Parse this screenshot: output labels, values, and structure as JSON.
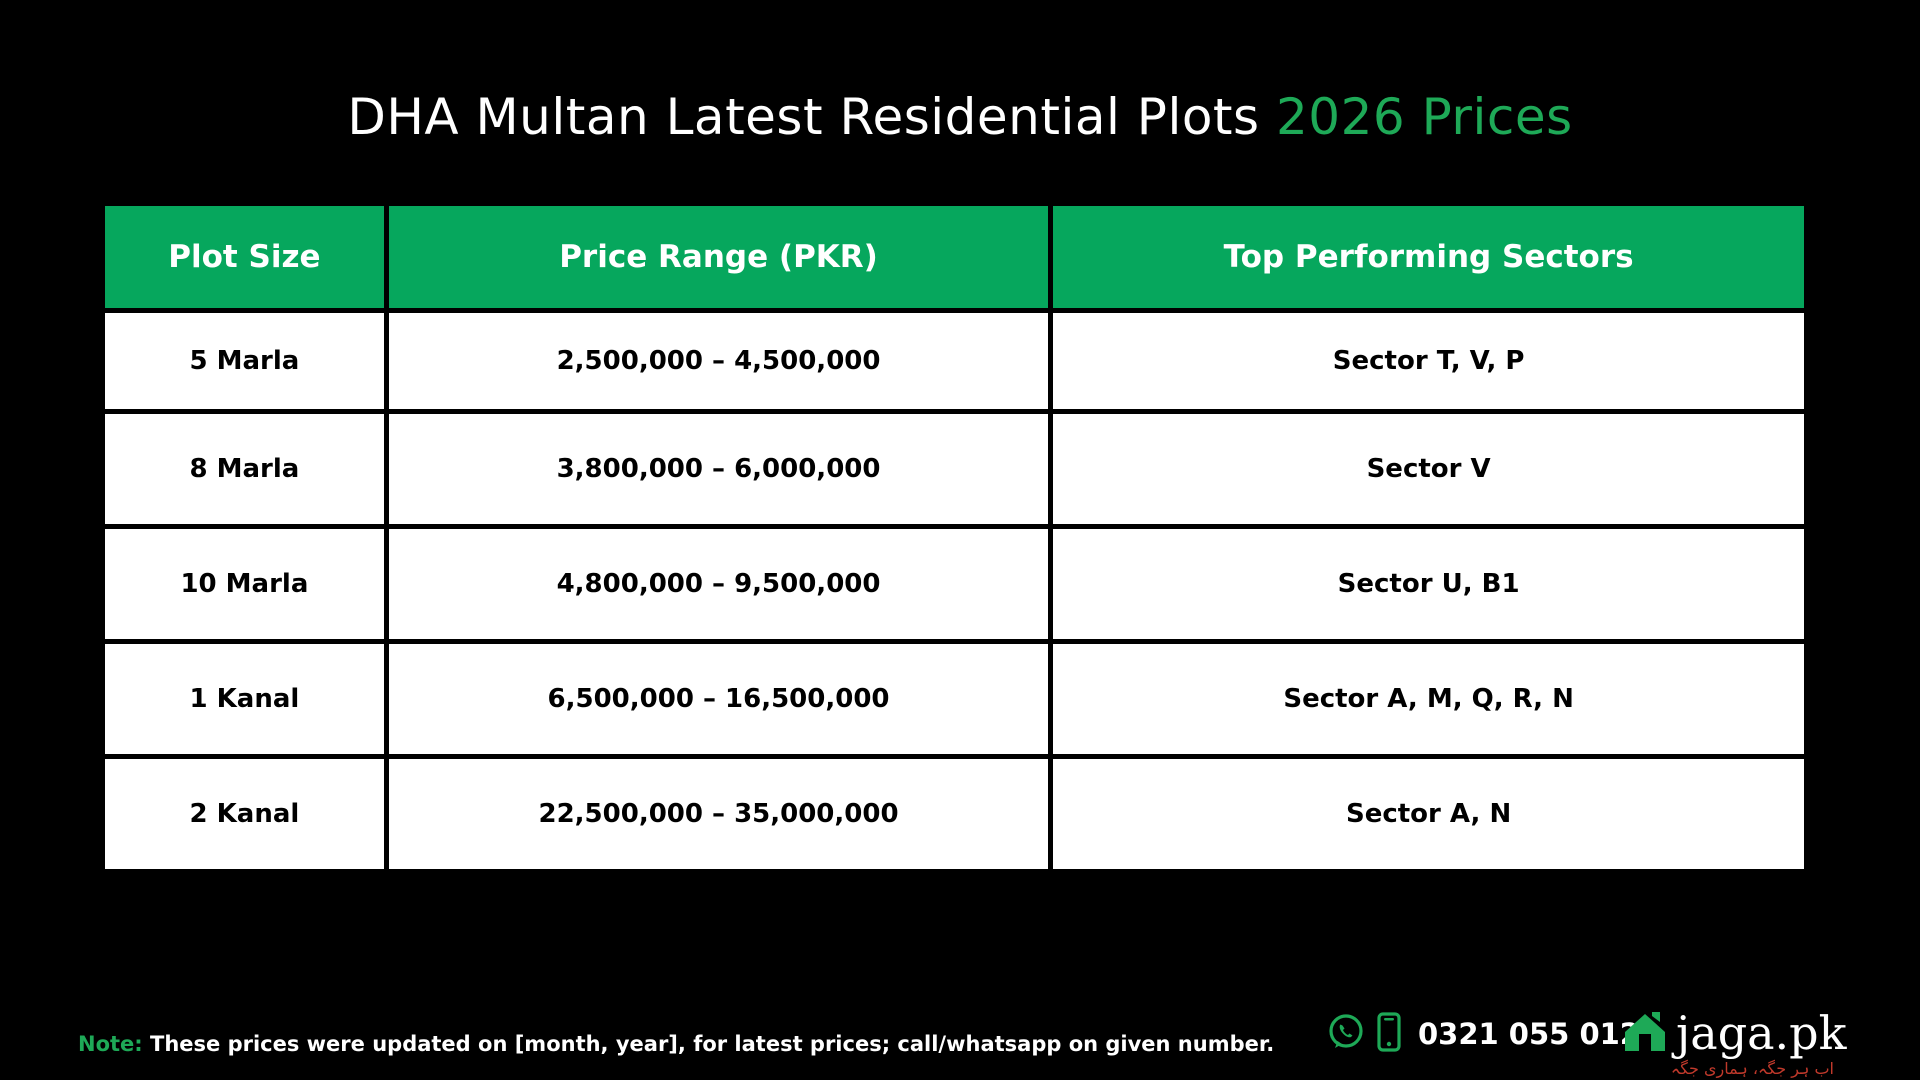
{
  "title": {
    "main": "DHA Multan Latest Residential Plots",
    "highlight": "2026 Prices"
  },
  "colors": {
    "accent": "#06a75d",
    "background": "#000000",
    "cell": "#ffffff",
    "tagline": "#c0392b"
  },
  "table": {
    "headers": [
      "Plot Size",
      "Price Range (PKR)",
      "Top Performing Sectors"
    ],
    "rows": [
      [
        "5 Marla",
        "2,500,000 – 4,500,000",
        "Sector T, V, P"
      ],
      [
        "8 Marla",
        "3,800,000 – 6,000,000",
        "Sector V"
      ],
      [
        "10 Marla",
        "4,800,000 – 9,500,000",
        "Sector U, B1"
      ],
      [
        "1 Kanal",
        "6,500,000 – 16,500,000",
        "Sector A, M, Q, R, N"
      ],
      [
        "2 Kanal",
        "22,500,000 – 35,000,000",
        "Sector A, N"
      ]
    ]
  },
  "footer": {
    "note_label": "Note:",
    "note_text": "These prices were updated on [month, year], for latest prices; call/whatsapp on given number.",
    "phone": "0321 055 0123",
    "brand": "jaga.pk",
    "tagline": "اب ہر جگہ، ہماری جگہ",
    "icons": [
      "whatsapp-icon",
      "mobile-phone-icon",
      "house-logo-icon"
    ]
  }
}
